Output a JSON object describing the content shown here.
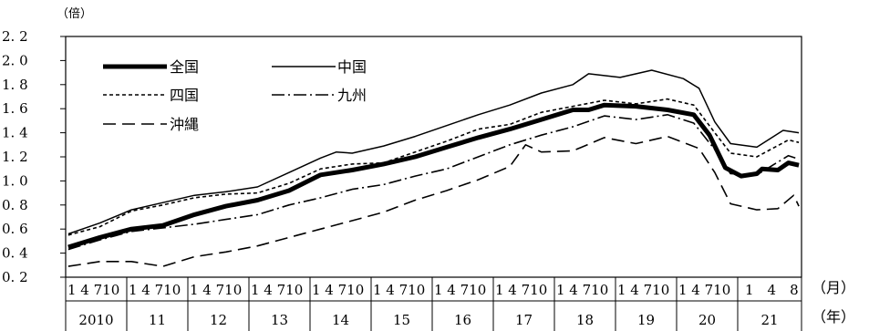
{
  "chart_data": {
    "type": "line",
    "ylabel": "（倍）",
    "ylim": [
      0.2,
      2.2
    ],
    "yticks": [
      "2. 2",
      "2. 0",
      "1. 8",
      "1. 6",
      "1. 4",
      "1. 2",
      "1. 0",
      "0. 8",
      "0. 6",
      "0. 4",
      "0. 2"
    ],
    "month_axis_unit": "（月）",
    "year_axis_unit": "（年）",
    "month_ticks": [
      "1",
      "4",
      "7",
      "10"
    ],
    "last_year_month_ticks": [
      "1",
      "4",
      "8"
    ],
    "years": [
      "2010",
      "11",
      "12",
      "13",
      "14",
      "15",
      "16",
      "17",
      "18",
      "19",
      "20",
      "21"
    ],
    "x_range": [
      "2010-01",
      "2021-08"
    ],
    "grid": false,
    "legend": [
      {
        "label": "全国",
        "series": 0
      },
      {
        "label": "中国",
        "series": 1
      },
      {
        "label": "四国",
        "series": 2
      },
      {
        "label": "九州",
        "series": 3
      },
      {
        "label": "沖縄",
        "series": 4
      }
    ],
    "series": [
      {
        "name": "全国",
        "style": "thick-solid",
        "color": "#000000",
        "points": [
          [
            "2010-01",
            0.45
          ],
          [
            "2010-07",
            0.53
          ],
          [
            "2011-01",
            0.6
          ],
          [
            "2011-07",
            0.63
          ],
          [
            "2012-01",
            0.72
          ],
          [
            "2012-07",
            0.79
          ],
          [
            "2013-01",
            0.84
          ],
          [
            "2013-07",
            0.92
          ],
          [
            "2014-01",
            1.05
          ],
          [
            "2014-07",
            1.09
          ],
          [
            "2015-01",
            1.14
          ],
          [
            "2015-07",
            1.2
          ],
          [
            "2016-01",
            1.28
          ],
          [
            "2016-07",
            1.36
          ],
          [
            "2017-01",
            1.43
          ],
          [
            "2017-07",
            1.51
          ],
          [
            "2018-01",
            1.59
          ],
          [
            "2018-04",
            1.59
          ],
          [
            "2018-07",
            1.63
          ],
          [
            "2019-01",
            1.62
          ],
          [
            "2019-07",
            1.59
          ],
          [
            "2019-12",
            1.55
          ],
          [
            "2020-03",
            1.38
          ],
          [
            "2020-06",
            1.11
          ],
          [
            "2020-09",
            1.04
          ],
          [
            "2020-12",
            1.06
          ],
          [
            "2021-01",
            1.1
          ],
          [
            "2021-04",
            1.09
          ],
          [
            "2021-06",
            1.15
          ],
          [
            "2021-08",
            1.13
          ]
        ]
      },
      {
        "name": "中国",
        "style": "thin-solid",
        "color": "#000000",
        "points": [
          [
            "2010-01",
            0.56
          ],
          [
            "2010-07",
            0.65
          ],
          [
            "2011-01",
            0.76
          ],
          [
            "2011-07",
            0.82
          ],
          [
            "2012-01",
            0.88
          ],
          [
            "2012-07",
            0.91
          ],
          [
            "2013-01",
            0.95
          ],
          [
            "2013-07",
            1.07
          ],
          [
            "2014-01",
            1.19
          ],
          [
            "2014-04",
            1.24
          ],
          [
            "2014-07",
            1.23
          ],
          [
            "2015-01",
            1.29
          ],
          [
            "2015-07",
            1.37
          ],
          [
            "2016-01",
            1.46
          ],
          [
            "2016-07",
            1.55
          ],
          [
            "2017-01",
            1.63
          ],
          [
            "2017-07",
            1.73
          ],
          [
            "2018-01",
            1.8
          ],
          [
            "2018-04",
            1.89
          ],
          [
            "2018-10",
            1.86
          ],
          [
            "2019-04",
            1.92
          ],
          [
            "2019-10",
            1.85
          ],
          [
            "2020-01",
            1.77
          ],
          [
            "2020-04",
            1.49
          ],
          [
            "2020-07",
            1.31
          ],
          [
            "2020-12",
            1.28
          ],
          [
            "2021-05",
            1.42
          ],
          [
            "2021-08",
            1.4
          ]
        ]
      },
      {
        "name": "四国",
        "style": "short-dash",
        "color": "#000000",
        "points": [
          [
            "2010-01",
            0.55
          ],
          [
            "2010-07",
            0.62
          ],
          [
            "2011-01",
            0.75
          ],
          [
            "2011-07",
            0.8
          ],
          [
            "2012-01",
            0.86
          ],
          [
            "2012-07",
            0.89
          ],
          [
            "2013-01",
            0.9
          ],
          [
            "2013-07",
            0.98
          ],
          [
            "2014-01",
            1.1
          ],
          [
            "2014-07",
            1.14
          ],
          [
            "2015-01",
            1.15
          ],
          [
            "2015-07",
            1.24
          ],
          [
            "2016-01",
            1.33
          ],
          [
            "2016-07",
            1.43
          ],
          [
            "2017-01",
            1.47
          ],
          [
            "2017-07",
            1.57
          ],
          [
            "2018-01",
            1.62
          ],
          [
            "2018-07",
            1.67
          ],
          [
            "2019-01",
            1.64
          ],
          [
            "2019-07",
            1.68
          ],
          [
            "2019-12",
            1.63
          ],
          [
            "2020-04",
            1.4
          ],
          [
            "2020-07",
            1.23
          ],
          [
            "2020-12",
            1.2
          ],
          [
            "2021-06",
            1.34
          ],
          [
            "2021-08",
            1.32
          ]
        ]
      },
      {
        "name": "九州",
        "style": "dash-dot",
        "color": "#000000",
        "points": [
          [
            "2010-01",
            0.43
          ],
          [
            "2010-07",
            0.51
          ],
          [
            "2011-01",
            0.58
          ],
          [
            "2011-07",
            0.61
          ],
          [
            "2012-01",
            0.64
          ],
          [
            "2012-07",
            0.68
          ],
          [
            "2013-01",
            0.72
          ],
          [
            "2013-07",
            0.8
          ],
          [
            "2014-01",
            0.86
          ],
          [
            "2014-07",
            0.93
          ],
          [
            "2015-01",
            0.97
          ],
          [
            "2015-07",
            1.04
          ],
          [
            "2016-01",
            1.1
          ],
          [
            "2016-07",
            1.2
          ],
          [
            "2017-01",
            1.3
          ],
          [
            "2017-07",
            1.38
          ],
          [
            "2018-01",
            1.45
          ],
          [
            "2018-07",
            1.54
          ],
          [
            "2019-01",
            1.51
          ],
          [
            "2019-07",
            1.55
          ],
          [
            "2019-12",
            1.48
          ],
          [
            "2020-04",
            1.26
          ],
          [
            "2020-07",
            1.06
          ],
          [
            "2020-12",
            1.05
          ],
          [
            "2021-06",
            1.21
          ],
          [
            "2021-08",
            1.18
          ]
        ]
      },
      {
        "name": "沖縄",
        "style": "long-dash",
        "color": "#000000",
        "points": [
          [
            "2010-01",
            0.29
          ],
          [
            "2010-07",
            0.33
          ],
          [
            "2011-01",
            0.33
          ],
          [
            "2011-07",
            0.29
          ],
          [
            "2012-01",
            0.37
          ],
          [
            "2012-07",
            0.41
          ],
          [
            "2013-01",
            0.46
          ],
          [
            "2013-07",
            0.53
          ],
          [
            "2014-01",
            0.6
          ],
          [
            "2014-07",
            0.67
          ],
          [
            "2015-01",
            0.74
          ],
          [
            "2015-07",
            0.84
          ],
          [
            "2016-01",
            0.92
          ],
          [
            "2016-07",
            1.01
          ],
          [
            "2017-01",
            1.12
          ],
          [
            "2017-04",
            1.3
          ],
          [
            "2017-07",
            1.24
          ],
          [
            "2018-01",
            1.25
          ],
          [
            "2018-07",
            1.36
          ],
          [
            "2019-01",
            1.31
          ],
          [
            "2019-07",
            1.37
          ],
          [
            "2020-01",
            1.27
          ],
          [
            "2020-04",
            1.07
          ],
          [
            "2020-07",
            0.81
          ],
          [
            "2020-12",
            0.76
          ],
          [
            "2021-04",
            0.77
          ],
          [
            "2021-07",
            0.88
          ],
          [
            "2021-08",
            0.79
          ]
        ]
      }
    ]
  }
}
